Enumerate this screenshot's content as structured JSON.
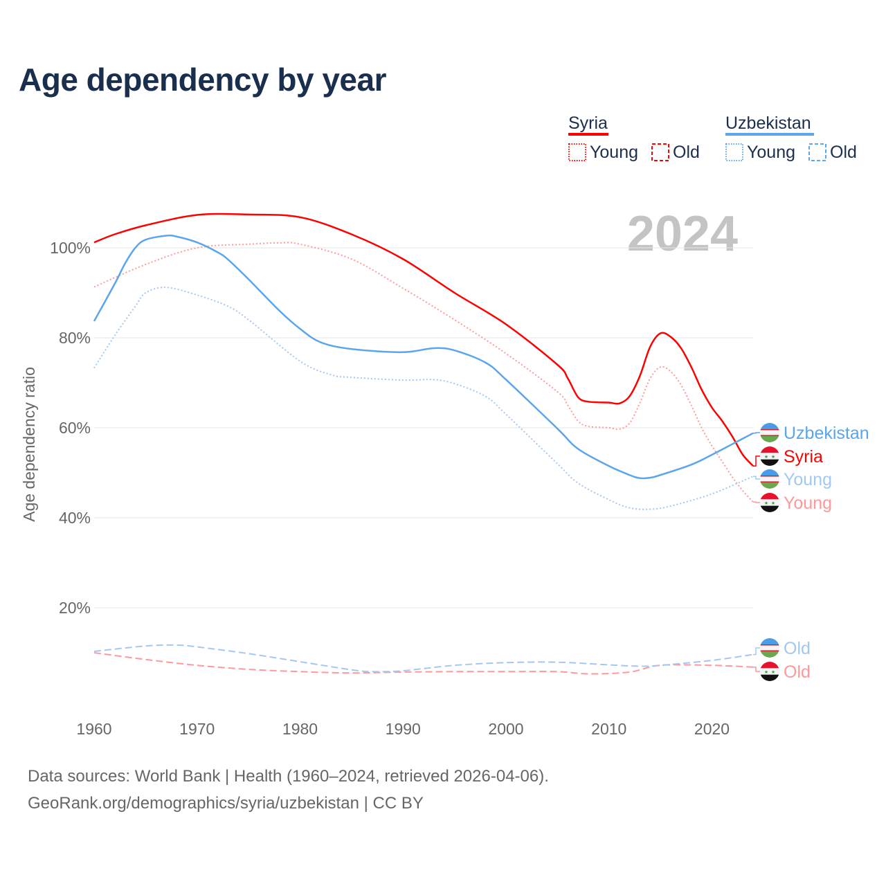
{
  "title": "Age dependency by year",
  "year_badge": "2024",
  "legend": {
    "groups": [
      {
        "name": "Syria",
        "color": "#ff0000",
        "young": "Young",
        "old": "Old"
      },
      {
        "name": "Uzbekistan",
        "color": "#5aa5ec",
        "young": "Young",
        "old": "Old"
      }
    ]
  },
  "footer": {
    "line1": "Data sources: World Bank | Health (1960–2024, retrieved 2026-04-06).",
    "line2": "GeoRank.org/demographics/syria/uzbekistan | CC BY"
  },
  "chart_data": {
    "type": "line",
    "title": "Age dependency by year",
    "xlabel": "",
    "ylabel": "Age dependency ratio",
    "xlim": [
      1960,
      2024
    ],
    "ylim": [
      0,
      110
    ],
    "x_ticks": [
      "1960",
      "1970",
      "1980",
      "1990",
      "2000",
      "2010",
      "2020"
    ],
    "y_ticks": [
      "20%",
      "40%",
      "60%",
      "80%",
      "100%"
    ],
    "grid": true,
    "legend_position": "top-right",
    "series": [
      {
        "name": "Syria",
        "label": "Syria",
        "style": "solid",
        "color": "#ff0000",
        "points": [
          [
            1960,
            101.2
          ],
          [
            1962,
            103
          ],
          [
            1965,
            105
          ],
          [
            1970,
            107.3
          ],
          [
            1975,
            107.4
          ],
          [
            1980,
            106.8
          ],
          [
            1985,
            103
          ],
          [
            1990,
            97.5
          ],
          [
            1995,
            90
          ],
          [
            2000,
            83
          ],
          [
            2005,
            74
          ],
          [
            2006,
            71
          ],
          [
            2007,
            66.8
          ],
          [
            2008,
            65.8
          ],
          [
            2010,
            65.6
          ],
          [
            2011,
            65.4
          ],
          [
            2012,
            67
          ],
          [
            2013,
            71.5
          ],
          [
            2014,
            78
          ],
          [
            2015,
            81
          ],
          [
            2016,
            80.2
          ],
          [
            2017,
            77.7
          ],
          [
            2018,
            73.5
          ],
          [
            2019,
            68.5
          ],
          [
            2020,
            64.5
          ],
          [
            2021,
            61.5
          ],
          [
            2022,
            58
          ],
          [
            2023,
            54
          ],
          [
            2024,
            51.5
          ]
        ]
      },
      {
        "name": "Syria Young",
        "label": "Young",
        "style": "dotted",
        "color": "#ff9999",
        "points": [
          [
            1960,
            91.3
          ],
          [
            1965,
            96.3
          ],
          [
            1970,
            100
          ],
          [
            1975,
            100.8
          ],
          [
            1978,
            101.1
          ],
          [
            1980,
            100.8
          ],
          [
            1985,
            97.5
          ],
          [
            1990,
            91
          ],
          [
            1995,
            84
          ],
          [
            2000,
            76.5
          ],
          [
            2005,
            68
          ],
          [
            2006,
            65
          ],
          [
            2007,
            61.5
          ],
          [
            2008,
            60.3
          ],
          [
            2010,
            60
          ],
          [
            2011,
            59.7
          ],
          [
            2012,
            61
          ],
          [
            2013,
            65.5
          ],
          [
            2014,
            71
          ],
          [
            2015,
            73.5
          ],
          [
            2016,
            72.5
          ],
          [
            2017,
            69.5
          ],
          [
            2018,
            65
          ],
          [
            2019,
            60
          ],
          [
            2020,
            56
          ],
          [
            2021,
            52.5
          ],
          [
            2022,
            49
          ],
          [
            2023,
            46
          ],
          [
            2024,
            43.5
          ]
        ]
      },
      {
        "name": "Syria Old",
        "label": "Old",
        "style": "dashed",
        "color": "#ff9999",
        "points": [
          [
            1960,
            10
          ],
          [
            1965,
            8.5
          ],
          [
            1970,
            7.2
          ],
          [
            1975,
            6.3
          ],
          [
            1980,
            5.8
          ],
          [
            1985,
            5.5
          ],
          [
            1990,
            5.7
          ],
          [
            1995,
            5.8
          ],
          [
            2000,
            5.8
          ],
          [
            2005,
            5.8
          ],
          [
            2008,
            5.3
          ],
          [
            2012,
            5.7
          ],
          [
            2015,
            7.2
          ],
          [
            2020,
            7.2
          ],
          [
            2024,
            6.8
          ]
        ]
      },
      {
        "name": "Uzbekistan",
        "label": "Uzbekistan",
        "style": "solid",
        "color": "#5aa5ec",
        "points": [
          [
            1960,
            83.7
          ],
          [
            1962,
            92
          ],
          [
            1963,
            96.5
          ],
          [
            1964,
            100
          ],
          [
            1965,
            101.8
          ],
          [
            1967,
            102.7
          ],
          [
            1968,
            102.5
          ],
          [
            1970,
            101.2
          ],
          [
            1972,
            99
          ],
          [
            1973,
            97.4
          ],
          [
            1975,
            93
          ],
          [
            1978,
            86
          ],
          [
            1980,
            82
          ],
          [
            1982,
            79
          ],
          [
            1985,
            77.5
          ],
          [
            1990,
            76.8
          ],
          [
            1993,
            77.7
          ],
          [
            1995,
            77.2
          ],
          [
            1998,
            74.5
          ],
          [
            2000,
            70.7
          ],
          [
            2005,
            59.8
          ],
          [
            2007,
            55.3
          ],
          [
            2010,
            51.5
          ],
          [
            2012,
            49.5
          ],
          [
            2013,
            48.8
          ],
          [
            2014,
            48.9
          ],
          [
            2015,
            49.5
          ],
          [
            2018,
            51.8
          ],
          [
            2020,
            54
          ],
          [
            2024,
            58.8
          ]
        ]
      },
      {
        "name": "Uzbekistan Young",
        "label": "Young",
        "style": "dotted",
        "color": "#a3c8f0",
        "points": [
          [
            1960,
            73.3
          ],
          [
            1962,
            80.5
          ],
          [
            1964,
            87
          ],
          [
            1965,
            90
          ],
          [
            1967,
            91.2
          ],
          [
            1970,
            89.5
          ],
          [
            1973,
            87
          ],
          [
            1975,
            84
          ],
          [
            1980,
            74.8
          ],
          [
            1983,
            71.8
          ],
          [
            1985,
            71.2
          ],
          [
            1990,
            70.6
          ],
          [
            1993,
            70.7
          ],
          [
            1995,
            69.8
          ],
          [
            1998,
            67
          ],
          [
            2000,
            63
          ],
          [
            2005,
            52
          ],
          [
            2007,
            47.7
          ],
          [
            2010,
            44
          ],
          [
            2012,
            42.2
          ],
          [
            2014,
            41.9
          ],
          [
            2016,
            42.6
          ],
          [
            2020,
            45.3
          ],
          [
            2024,
            49.2
          ]
        ]
      },
      {
        "name": "Uzbekistan Old",
        "label": "Old",
        "style": "dashed",
        "color": "#a3c8f0",
        "points": [
          [
            1960,
            10.3
          ],
          [
            1965,
            11.5
          ],
          [
            1968,
            11.7
          ],
          [
            1970,
            11.3
          ],
          [
            1975,
            9.8
          ],
          [
            1980,
            8
          ],
          [
            1985,
            6.2
          ],
          [
            1987,
            5.8
          ],
          [
            1990,
            6
          ],
          [
            1995,
            7.2
          ],
          [
            2000,
            7.8
          ],
          [
            2005,
            7.9
          ],
          [
            2010,
            7.3
          ],
          [
            2013,
            7
          ],
          [
            2015,
            7.2
          ],
          [
            2020,
            8.3
          ],
          [
            2024,
            9.6
          ]
        ]
      }
    ]
  }
}
